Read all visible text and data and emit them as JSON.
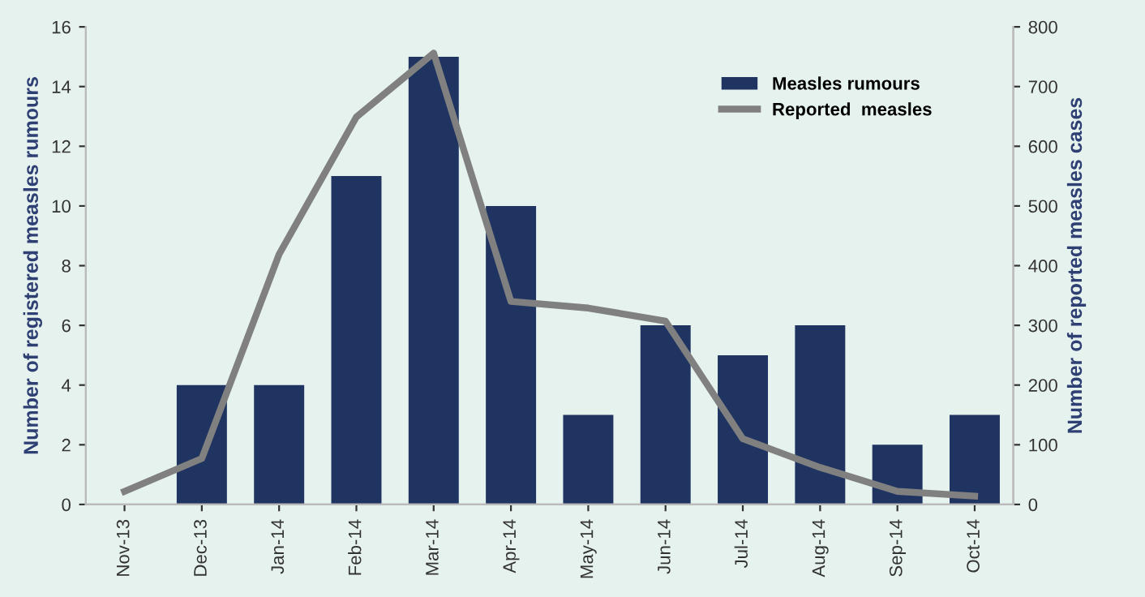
{
  "chart_data": {
    "type": "bar",
    "categories": [
      "Nov-13",
      "Dec-13",
      "Jan-14",
      "Feb-14",
      "Mar-14",
      "Apr-14",
      "May-14",
      "Jun-14",
      "Jul-14",
      "Aug-14",
      "Sep-14",
      "Oct-14"
    ],
    "series": [
      {
        "name": "Measles rumours",
        "color": "#1f3461",
        "values": [
          0,
          4,
          4,
          11,
          15,
          10,
          3,
          6,
          5,
          6,
          2,
          3
        ]
      },
      {
        "name": "Reported  measles",
        "type": "line",
        "axis": "y2",
        "color": "#808080",
        "values": [
          22,
          77,
          419,
          649,
          756,
          340,
          329,
          307,
          110,
          62,
          22,
          14
        ]
      }
    ],
    "ylabel": "Number of registered measles rumours",
    "y2label": "Number of reported measles cases",
    "ylim": [
      0,
      16
    ],
    "yticks": [
      0,
      2,
      4,
      6,
      8,
      10,
      12,
      14,
      16
    ],
    "y2lim": [
      0,
      800
    ],
    "y2ticks": [
      0,
      100,
      200,
      300,
      400,
      500,
      600,
      700,
      800
    ],
    "grid": false,
    "legend": "top right",
    "marker": "none",
    "line_style": "solid"
  }
}
